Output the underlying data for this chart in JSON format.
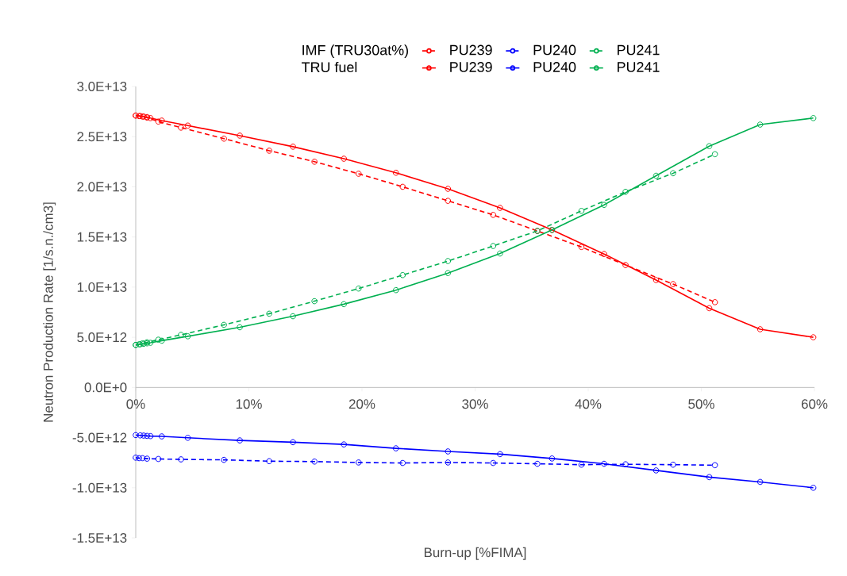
{
  "chart_data": {
    "type": "line",
    "xlabel": "Burn-up [%FIMA]",
    "ylabel": "Neutron Production Rate [1/s.n./cm3]",
    "annotations": [
      "IMF (TRU30at%)",
      "TRU fuel"
    ],
    "xlim": [
      0,
      60
    ],
    "ylim": [
      -15000000000000.0,
      30000000000000.0
    ],
    "xticks": [
      {
        "value": 0,
        "label": "0%"
      },
      {
        "value": 10,
        "label": "10%"
      },
      {
        "value": 20,
        "label": "20%"
      },
      {
        "value": 30,
        "label": "30%"
      },
      {
        "value": 40,
        "label": "40%"
      },
      {
        "value": 50,
        "label": "50%"
      },
      {
        "value": 60,
        "label": "60%"
      }
    ],
    "yticks": [
      {
        "value": -15000000000000.0,
        "label": "-1.5E+13"
      },
      {
        "value": -10000000000000.0,
        "label": "-1.0E+13"
      },
      {
        "value": -5000000000000.0,
        "label": "-5.0E+12"
      },
      {
        "value": 0,
        "label": "0.0E+0"
      },
      {
        "value": 5000000000000.0,
        "label": "5.0E+12"
      },
      {
        "value": 10000000000000.0,
        "label": "1.0E+13"
      },
      {
        "value": 15000000000000.0,
        "label": "1.5E+13"
      },
      {
        "value": 20000000000000.0,
        "label": "2.0E+13"
      },
      {
        "value": 25000000000000.0,
        "label": "2.5E+13"
      },
      {
        "value": 30000000000000.0,
        "label": "3.0E+13"
      }
    ],
    "legend": "top",
    "marker": "circle",
    "grid": false,
    "series": [
      {
        "name": "PU239",
        "color": "#ff0000",
        "line_style": "dashed",
        "x": [
          0,
          0.3,
          0.6,
          1.0,
          2.0,
          4.0,
          7.8,
          11.8,
          15.8,
          19.7,
          23.6,
          27.6,
          31.6,
          35.5,
          39.4,
          43.3,
          47.5,
          51.2
        ],
        "values": [
          27100000000000.0,
          27050000000000.0,
          27000000000000.0,
          26900000000000.0,
          26500000000000.0,
          25900000000000.0,
          24800000000000.0,
          23600000000000.0,
          22500000000000.0,
          21300000000000.0,
          20000000000000.0,
          18600000000000.0,
          17200000000000.0,
          15600000000000.0,
          14000000000000.0,
          12200000000000.0,
          10300000000000.0,
          8500000000000.0
        ]
      },
      {
        "name": "PU240",
        "color": "#0000ff",
        "line_style": "dashed",
        "x": [
          0,
          0.3,
          0.6,
          1.0,
          2.0,
          4.0,
          7.8,
          11.8,
          15.8,
          19.7,
          23.6,
          27.6,
          31.6,
          35.5,
          39.4,
          43.3,
          47.5,
          51.2
        ],
        "values": [
          -7000000000000.0,
          -7050000000000.0,
          -7050000000000.0,
          -7100000000000.0,
          -7130000000000.0,
          -7170000000000.0,
          -7220000000000.0,
          -7350000000000.0,
          -7390000000000.0,
          -7480000000000.0,
          -7530000000000.0,
          -7480000000000.0,
          -7530000000000.0,
          -7610000000000.0,
          -7700000000000.0,
          -7660000000000.0,
          -7700000000000.0,
          -7750000000000.0
        ]
      },
      {
        "name": "PU241",
        "color": "#00b050",
        "line_style": "dashed",
        "x": [
          0,
          0.3,
          0.6,
          1.0,
          2.0,
          4.0,
          7.8,
          11.8,
          15.8,
          19.7,
          23.6,
          27.6,
          31.6,
          35.5,
          39.4,
          43.3,
          47.5,
          51.2
        ],
        "values": [
          4240000000000.0,
          4300000000000.0,
          4400000000000.0,
          4500000000000.0,
          4760000000000.0,
          5240000000000.0,
          6240000000000.0,
          7350000000000.0,
          8600000000000.0,
          9860000000000.0,
          11200000000000.0,
          12600000000000.0,
          14100000000000.0,
          15600000000000.0,
          17600000000000.0,
          19500000000000.0,
          21350000000000.0,
          23250000000000.0
        ]
      },
      {
        "name": "PU239",
        "color": "#ff0000",
        "line_style": "solid",
        "x": [
          0,
          0.4,
          0.7,
          1.0,
          1.3,
          2.3,
          4.6,
          9.2,
          13.9,
          18.4,
          23.0,
          27.6,
          32.2,
          36.8,
          41.4,
          46.0,
          50.7,
          55.2,
          59.9
        ],
        "values": [
          27100000000000.0,
          27050000000000.0,
          27000000000000.0,
          26950000000000.0,
          26850000000000.0,
          26600000000000.0,
          26100000000000.0,
          25100000000000.0,
          24000000000000.0,
          22800000000000.0,
          21400000000000.0,
          19800000000000.0,
          17900000000000.0,
          15700000000000.0,
          13300000000000.0,
          10700000000000.0,
          7900000000000.0,
          5800000000000.0,
          5000000000000.0
        ]
      },
      {
        "name": "PU240",
        "color": "#0000ff",
        "line_style": "solid",
        "x": [
          0,
          0.4,
          0.7,
          1.0,
          1.3,
          2.3,
          4.6,
          9.2,
          13.9,
          18.4,
          23.0,
          27.6,
          32.2,
          36.8,
          41.4,
          46.0,
          50.7,
          55.2,
          59.9
        ],
        "values": [
          -4750000000000.0,
          -4780000000000.0,
          -4800000000000.0,
          -4830000000000.0,
          -4850000000000.0,
          -4880000000000.0,
          -5020000000000.0,
          -5280000000000.0,
          -5460000000000.0,
          -5680000000000.0,
          -6070000000000.0,
          -6380000000000.0,
          -6650000000000.0,
          -7080000000000.0,
          -7610000000000.0,
          -8270000000000.0,
          -8940000000000.0,
          -9420000000000.0,
          -10000000000000.0
        ]
      },
      {
        "name": "PU241",
        "color": "#00b050",
        "line_style": "solid",
        "x": [
          0,
          0.4,
          0.7,
          1.0,
          1.3,
          2.3,
          4.6,
          9.2,
          13.9,
          18.4,
          23.0,
          27.6,
          32.2,
          36.8,
          41.4,
          46.0,
          50.7,
          55.2,
          59.9
        ],
        "values": [
          4240000000000.0,
          4300000000000.0,
          4350000000000.0,
          4400000000000.0,
          4450000000000.0,
          4660000000000.0,
          5100000000000.0,
          6000000000000.0,
          7100000000000.0,
          8300000000000.0,
          9700000000000.0,
          11400000000000.0,
          13350000000000.0,
          15700000000000.0,
          18200000000000.0,
          21100000000000.0,
          24050000000000.0,
          26200000000000.0,
          26850000000000.0
        ]
      }
    ]
  }
}
